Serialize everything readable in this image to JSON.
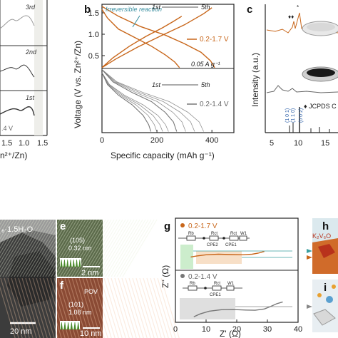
{
  "colors": {
    "orange": "#c8661a",
    "gray": "#777777",
    "dark": "#2b2b2b",
    "green_highlight": "#bfe8bf",
    "orange_highlight": "#f6d9bd",
    "gray_highlight": "#d9d9d9",
    "teal_text": "#3a8fa0"
  },
  "panels": {
    "a": {
      "cycle_labels": [
        "3rd",
        "2nd",
        "1st"
      ],
      "voltage_label": ".4 V",
      "xticks": [
        "1.5",
        "1.0",
        "1.5"
      ],
      "xlabel": "n²⁺/Zn)"
    },
    "b": {
      "letter": "b",
      "ylabel": "Voltage (V vs. Zn²⁺/Zn)",
      "xlabel": "Specific capacity (mAh g⁻¹)",
      "annotation": "Irreversible reaction",
      "current": "0.05 A g⁻¹",
      "top_first": "1st",
      "top_fifth": "5th",
      "bottom_first": "1st",
      "bottom_fifth": "5th",
      "legend_top": "0.2-1.7 V",
      "legend_bottom": "0.2-1.4 V"
    },
    "c": {
      "letter": "c",
      "ylabel": "Intensity (a.u.)",
      "jcpds": "♦ JCPDS C",
      "xticks": [
        "5",
        "10",
        "15"
      ],
      "miller1": "(0 0 2)",
      "miller2": "(1 0 1)",
      "miller3": "(1 1 0)"
    },
    "d": {
      "formula": "₆·1.5H₂O",
      "scale": "20 nm"
    },
    "e": {
      "letter": "e",
      "plane": "(105)",
      "spacing": "0.32 nm",
      "scale": "2 nm"
    },
    "f": {
      "letter": "f",
      "label": "POV",
      "plane": "(101)",
      "spacing": "1.08 nm",
      "scale": "10 nm"
    },
    "g": {
      "letter": "g",
      "ylabel": "Z'' (Ω)",
      "xlabel": "Z' (Ω)",
      "legend_top": "0.2-1.7 V",
      "legend_bottom": "0.2-1.4 V",
      "circuit_top": [
        "Rb",
        "Rct",
        "Rct",
        "W1",
        "CPE2",
        "CPE1"
      ],
      "circuit_bottom": [
        "Rb",
        "Rct",
        "W1",
        "CPE1"
      ]
    },
    "h": {
      "letter": "h",
      "formula": "K₂V₆O"
    },
    "i": {
      "letter": "i"
    }
  },
  "chart_data": [
    {
      "panel": "b",
      "type": "line",
      "xlabel": "Specific capacity (mAh g⁻¹)",
      "ylabel": "Voltage (V vs. Zn²⁺/Zn)",
      "xlim": [
        0,
        480
      ],
      "xticks": [
        0,
        200,
        400
      ],
      "ylim_top": [
        0.2,
        1.7
      ],
      "yticks_top": [
        0.5,
        1.0,
        1.5
      ],
      "ylim_bottom": [
        0.2,
        1.4
      ],
      "series": [
        {
          "name": "0.2-1.7 V",
          "subplot": "top",
          "cycle": "1st discharge",
          "points": [
            [
              0,
              1.58
            ],
            [
              20,
              1.38
            ],
            [
              60,
              1.12
            ],
            [
              120,
              0.92
            ],
            [
              180,
              0.72
            ],
            [
              230,
              0.52
            ],
            [
              265,
              0.35
            ],
            [
              282,
              0.22
            ]
          ]
        },
        {
          "name": "0.2-1.7 V",
          "subplot": "top",
          "cycle": "1st charge",
          "points": [
            [
              0,
              0.22
            ],
            [
              40,
              0.45
            ],
            [
              100,
              0.72
            ],
            [
              160,
              0.95
            ],
            [
              220,
              1.15
            ],
            [
              260,
              1.3
            ],
            [
              290,
              1.42
            ]
          ]
        },
        {
          "name": "0.2-1.7 V",
          "subplot": "top",
          "cycle": "5th discharge",
          "points": [
            [
              0,
              1.65
            ],
            [
              60,
              1.42
            ],
            [
              140,
              1.18
            ],
            [
              230,
              0.98
            ],
            [
              300,
              0.78
            ],
            [
              360,
              0.58
            ],
            [
              395,
              0.38
            ],
            [
              410,
              0.22
            ]
          ]
        },
        {
          "name": "0.2-1.7 V",
          "subplot": "top",
          "cycle": "5th charge",
          "points": [
            [
              0,
              0.22
            ],
            [
              50,
              0.42
            ],
            [
              130,
              0.7
            ],
            [
              220,
              0.98
            ],
            [
              300,
              1.22
            ],
            [
              370,
              1.48
            ],
            [
              400,
              1.62
            ]
          ]
        },
        {
          "name": "0.2-1.4 V",
          "subplot": "bottom",
          "cycle": "1st",
          "points": [
            [
              0,
              1.32
            ],
            [
              20,
              1.1
            ],
            [
              60,
              0.9
            ],
            [
              110,
              0.72
            ],
            [
              150,
              0.52
            ],
            [
              170,
              0.35
            ],
            [
              178,
              0.22
            ]
          ]
        },
        {
          "name": "0.2-1.4 V",
          "subplot": "bottom",
          "cycle": "5th",
          "points": [
            [
              0,
              1.38
            ],
            [
              40,
              1.15
            ],
            [
              110,
              0.95
            ],
            [
              180,
              0.78
            ],
            [
              230,
              0.58
            ],
            [
              260,
              0.4
            ],
            [
              272,
              0.22
            ]
          ]
        }
      ]
    },
    {
      "panel": "g",
      "type": "line",
      "xlabel": "Z' (Ω)",
      "ylabel": "Z'' (Ω)",
      "xlim": [
        0,
        40
      ],
      "xticks": [
        0,
        10,
        20,
        30,
        40
      ],
      "series": [
        {
          "name": "0.2-1.7 V",
          "points": [
            [
              5,
              12
            ],
            [
              7,
              13
            ],
            [
              10,
              14
            ],
            [
              14,
              14.5
            ],
            [
              18,
              14.2
            ],
            [
              22,
              14.0
            ],
            [
              25,
              14.5
            ],
            [
              27,
              15.5
            ],
            [
              29,
              17
            ]
          ]
        },
        {
          "name": "0.2-1.4 V",
          "points": [
            [
              6,
              3
            ],
            [
              8,
              4.5
            ],
            [
              11,
              6
            ],
            [
              15,
              6.8
            ],
            [
              19,
              6.9
            ],
            [
              23,
              6.6
            ],
            [
              26,
              6.5
            ],
            [
              29,
              7.2
            ],
            [
              31,
              8.5
            ],
            [
              33,
              10
            ],
            [
              35,
              11
            ]
          ]
        }
      ]
    }
  ]
}
